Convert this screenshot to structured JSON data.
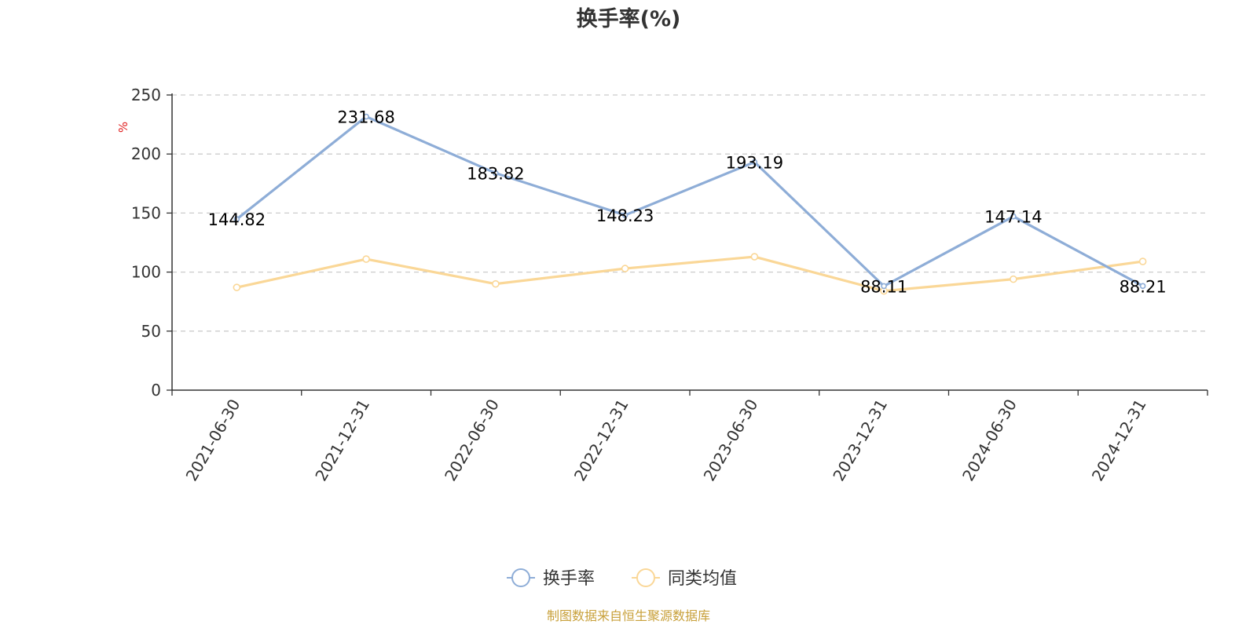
{
  "chart_data": {
    "type": "line",
    "title": "换手率(%)",
    "ylabel": "%",
    "xlabel": "",
    "categories": [
      "2021-06-30",
      "2021-12-31",
      "2022-06-30",
      "2022-12-31",
      "2023-06-30",
      "2023-12-31",
      "2024-06-30",
      "2024-12-31"
    ],
    "ylim": [
      0,
      250
    ],
    "yticks": [
      0,
      50,
      100,
      150,
      200,
      250
    ],
    "grid": true,
    "legend_position": "bottom-center",
    "series": [
      {
        "name": "换手率",
        "color": "#8eadd7",
        "values": [
          144.82,
          231.68,
          183.82,
          148.23,
          193.19,
          88.11,
          147.14,
          88.21
        ],
        "data_labels": [
          "144.82",
          "231.68",
          "183.82",
          "148.23",
          "193.19",
          "88.11",
          "147.14",
          "88.21"
        ]
      },
      {
        "name": "同类均值",
        "color": "#fad797",
        "values": [
          87,
          111,
          90,
          103,
          113,
          84,
          94,
          109
        ]
      }
    ]
  },
  "footer": {
    "source_text": "制图数据来自恒生聚源数据库",
    "source_color": "#c8a03a"
  },
  "unit_color": "#e02020"
}
